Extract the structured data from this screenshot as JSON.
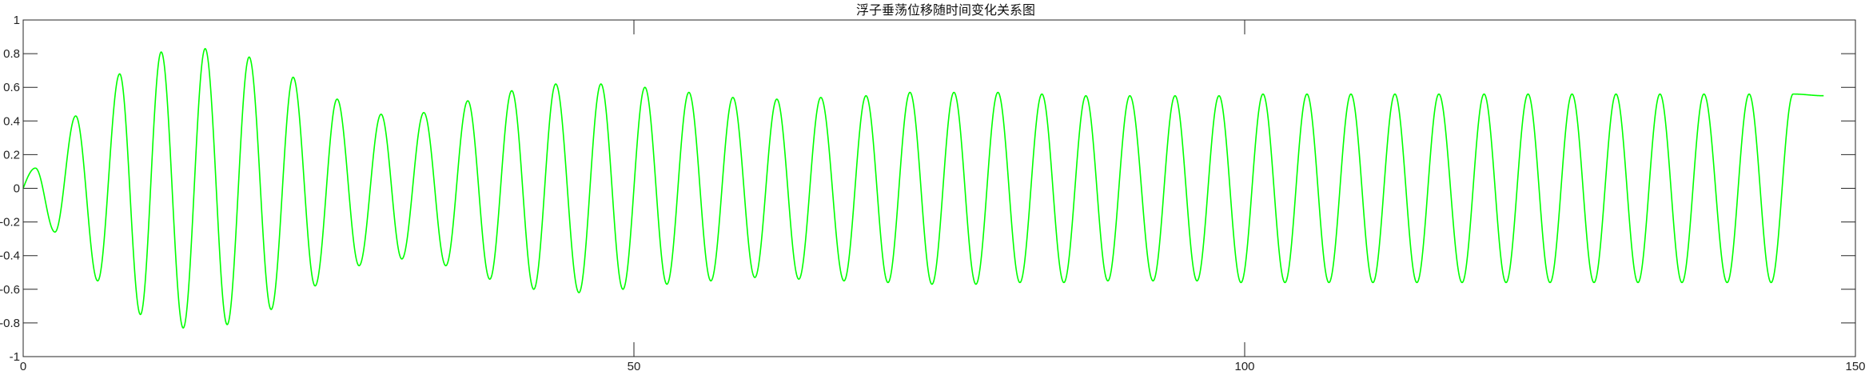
{
  "chart_data": {
    "type": "line",
    "title": "浮子垂荡位移随时间变化关系图",
    "xlabel": "",
    "ylabel": "",
    "xlim": [
      0,
      150
    ],
    "ylim": [
      -1,
      1
    ],
    "xticks": [
      0,
      50,
      100,
      150
    ],
    "yticks": [
      -1,
      -0.8,
      -0.6,
      -0.4,
      -0.2,
      0,
      0.2,
      0.4,
      0.6,
      0.8,
      1
    ],
    "xtick_labels": [
      "0",
      "50",
      "100",
      "150"
    ],
    "ytick_labels": [
      "-1",
      "-0.8",
      "-0.6",
      "-0.4",
      "-0.2",
      "0",
      "0.2",
      "0.4",
      "0.6",
      "0.8",
      "1"
    ],
    "grid": false,
    "series": [
      {
        "color": "#00ff00",
        "x_end": 147.4,
        "period": 3.62,
        "peaks": [
          [
            1.0,
            0.12
          ],
          [
            4.3,
            0.43
          ],
          [
            7.9,
            0.68
          ],
          [
            11.3,
            0.81
          ],
          [
            14.9,
            0.83
          ],
          [
            18.5,
            0.78
          ],
          [
            22.1,
            0.66
          ],
          [
            25.7,
            0.53
          ],
          [
            29.3,
            0.44
          ],
          [
            32.8,
            0.45
          ],
          [
            36.4,
            0.52
          ],
          [
            40.0,
            0.58
          ],
          [
            43.6,
            0.62
          ],
          [
            47.3,
            0.62
          ],
          [
            50.9,
            0.6
          ],
          [
            54.5,
            0.57
          ],
          [
            58.1,
            0.54
          ],
          [
            61.7,
            0.53
          ],
          [
            65.3,
            0.54
          ],
          [
            69.0,
            0.55
          ],
          [
            72.6,
            0.57
          ],
          [
            76.2,
            0.57
          ],
          [
            79.8,
            0.57
          ],
          [
            83.4,
            0.56
          ],
          [
            87.0,
            0.55
          ],
          [
            90.6,
            0.55
          ],
          [
            94.3,
            0.55
          ],
          [
            97.9,
            0.55
          ],
          [
            101.5,
            0.56
          ],
          [
            105.1,
            0.56
          ],
          [
            108.7,
            0.56
          ],
          [
            112.3,
            0.56
          ],
          [
            115.9,
            0.56
          ],
          [
            119.6,
            0.56
          ],
          [
            123.2,
            0.56
          ],
          [
            126.8,
            0.56
          ],
          [
            130.4,
            0.56
          ],
          [
            134.0,
            0.56
          ],
          [
            137.6,
            0.56
          ],
          [
            141.3,
            0.56
          ],
          [
            144.9,
            0.56
          ]
        ],
        "troughs": [
          [
            2.6,
            -0.26
          ],
          [
            6.1,
            -0.55
          ],
          [
            9.6,
            -0.75
          ],
          [
            13.1,
            -0.83
          ],
          [
            16.7,
            -0.81
          ],
          [
            20.3,
            -0.72
          ],
          [
            23.9,
            -0.58
          ],
          [
            27.5,
            -0.46
          ],
          [
            31.0,
            -0.42
          ],
          [
            34.6,
            -0.46
          ],
          [
            38.2,
            -0.54
          ],
          [
            41.8,
            -0.6
          ],
          [
            45.5,
            -0.62
          ],
          [
            49.1,
            -0.6
          ],
          [
            52.7,
            -0.57
          ],
          [
            56.3,
            -0.55
          ],
          [
            59.9,
            -0.53
          ],
          [
            63.5,
            -0.54
          ],
          [
            67.2,
            -0.55
          ],
          [
            70.8,
            -0.56
          ],
          [
            74.4,
            -0.57
          ],
          [
            78.0,
            -0.57
          ],
          [
            81.6,
            -0.56
          ],
          [
            85.2,
            -0.56
          ],
          [
            88.8,
            -0.55
          ],
          [
            92.5,
            -0.55
          ],
          [
            96.1,
            -0.55
          ],
          [
            99.7,
            -0.56
          ],
          [
            103.3,
            -0.56
          ],
          [
            106.9,
            -0.56
          ],
          [
            110.5,
            -0.56
          ],
          [
            114.1,
            -0.56
          ],
          [
            117.8,
            -0.56
          ],
          [
            121.4,
            -0.56
          ],
          [
            125.0,
            -0.56
          ],
          [
            128.6,
            -0.56
          ],
          [
            132.2,
            -0.56
          ],
          [
            135.8,
            -0.56
          ],
          [
            139.5,
            -0.56
          ],
          [
            143.1,
            -0.56
          ]
        ],
        "final_point": [
          147.4,
          0.55
        ]
      }
    ]
  }
}
